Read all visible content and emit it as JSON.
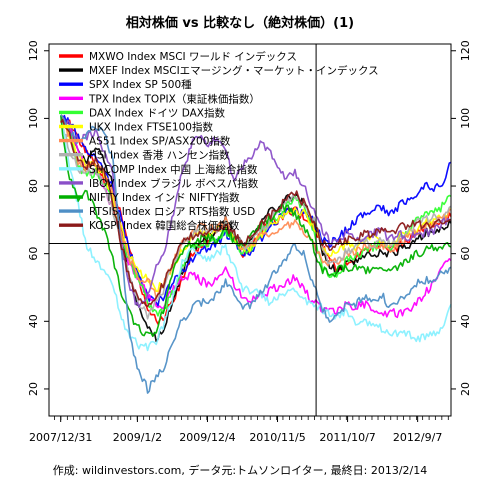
{
  "chart_data": {
    "type": "line",
    "title": "相対株価 vs 比較なし（絶対株価）(1)",
    "caption": "作成: wildinvestors.com, データ元:トムソンロイター, 最終日: 2013/2/14",
    "x_tick_labels": [
      "2007/12/31",
      "2009/1/2",
      "2009/12/4",
      "2010/11/5",
      "2011/10/7",
      "2012/9/7"
    ],
    "x_ticks": [
      "2007-12-31",
      "2009-01-02",
      "2009-12-04",
      "2010-11-05",
      "2011-10-07",
      "2012-09-07"
    ],
    "xlim": [
      "2007-11-05",
      "2013-02-14"
    ],
    "ylim": [
      12,
      122
    ],
    "y_ticks": [
      20,
      40,
      60,
      80,
      100,
      120
    ],
    "reference_lines": {
      "vertical_date": "2011-05-09",
      "horizontal_value": 63
    },
    "grid": false,
    "legend_position": "top-left",
    "series": [
      {
        "name": "MXWO Index MSCI ワールド インデックス",
        "color": "#ff0000",
        "values": [
          100,
          99,
          94,
          90,
          86,
          82,
          78,
          71,
          60,
          52,
          44,
          40,
          42,
          46,
          53,
          59,
          62,
          64,
          66,
          68,
          65,
          60,
          62,
          66,
          69,
          70,
          72,
          73,
          71,
          68,
          63,
          58,
          55,
          57,
          59,
          61,
          61,
          62,
          61,
          62,
          64,
          66,
          68,
          69,
          70,
          71
        ]
      },
      {
        "name": "MXEF Index MSCIエマージング・マーケット・インデックス",
        "color": "#000000",
        "values": [
          100,
          97,
          91,
          87,
          92,
          88,
          80,
          66,
          52,
          44,
          38,
          35,
          39,
          46,
          55,
          61,
          63,
          65,
          67,
          70,
          66,
          62,
          64,
          69,
          72,
          74,
          76,
          77,
          75,
          70,
          62,
          56,
          55,
          57,
          58,
          60,
          59,
          61,
          60,
          61,
          62,
          64,
          66,
          67,
          67,
          69
        ]
      },
      {
        "name": "SPX Index SP 500種",
        "color": "#0000ff",
        "values": [
          100,
          99,
          94,
          91,
          88,
          85,
          79,
          70,
          60,
          53,
          47,
          45,
          48,
          52,
          55,
          58,
          60,
          62,
          63,
          66,
          64,
          60,
          61,
          64,
          68,
          70,
          72,
          73,
          72,
          70,
          65,
          63,
          65,
          67,
          70,
          72,
          73,
          74,
          72,
          74,
          76,
          78,
          80,
          79,
          81,
          87
        ]
      },
      {
        "name": "TPX Index TOPIX（東証株価指数）",
        "color": "#ff00ff",
        "values": [
          100,
          97,
          90,
          85,
          84,
          80,
          73,
          65,
          56,
          52,
          48,
          45,
          45,
          50,
          53,
          54,
          52,
          51,
          52,
          55,
          51,
          47,
          46,
          48,
          49,
          50,
          51,
          53,
          50,
          46,
          44,
          43,
          43,
          45,
          44,
          45,
          44,
          42,
          43,
          42,
          43,
          45,
          48,
          52,
          56,
          58
        ]
      },
      {
        "name": "DAX Index ドイツ DAX指数",
        "color": "#33ff33",
        "values": [
          100,
          96,
          86,
          83,
          84,
          81,
          75,
          65,
          57,
          52,
          46,
          42,
          44,
          49,
          56,
          61,
          63,
          63,
          64,
          66,
          63,
          60,
          62,
          66,
          69,
          71,
          74,
          76,
          74,
          68,
          57,
          53,
          54,
          58,
          59,
          61,
          62,
          63,
          61,
          64,
          67,
          70,
          71,
          72,
          74,
          77
        ]
      },
      {
        "name": "UKX Index FTSE100指数",
        "color": "#ffff00",
        "values": [
          100,
          95,
          88,
          87,
          86,
          83,
          76,
          67,
          59,
          55,
          52,
          49,
          52,
          56,
          61,
          65,
          66,
          66,
          67,
          69,
          65,
          61,
          62,
          65,
          68,
          70,
          71,
          73,
          72,
          69,
          63,
          60,
          61,
          63,
          62,
          64,
          65,
          64,
          63,
          65,
          66,
          67,
          69,
          70,
          71,
          73
        ]
      },
      {
        "name": "AS51 Index SP/ASX200指数",
        "color": "#ff8c55",
        "values": [
          100,
          95,
          86,
          85,
          87,
          84,
          78,
          66,
          58,
          53,
          52,
          48,
          52,
          58,
          63,
          66,
          68,
          68,
          68,
          70,
          64,
          61,
          63,
          66,
          66,
          67,
          68,
          70,
          67,
          64,
          59,
          57,
          58,
          60,
          60,
          63,
          62,
          63,
          61,
          63,
          65,
          66,
          68,
          69,
          70,
          73
        ]
      },
      {
        "name": "HSI Index 香港 ハンセン指数",
        "color": "#b0b0b0",
        "values": [
          100,
          90,
          85,
          84,
          84,
          80,
          73,
          62,
          52,
          45,
          42,
          46,
          50,
          58,
          63,
          66,
          66,
          67,
          67,
          69,
          66,
          62,
          63,
          67,
          69,
          73,
          75,
          77,
          75,
          71,
          64,
          57,
          58,
          61,
          62,
          64,
          62,
          64,
          63,
          64,
          66,
          69,
          70,
          71,
          70,
          74
        ]
      },
      {
        "name": "SHCOMP Index 中国 上海総合指数",
        "color": "#88f0ff",
        "values": [
          100,
          86,
          74,
          62,
          58,
          55,
          50,
          41,
          35,
          33,
          32,
          34,
          40,
          48,
          57,
          62,
          60,
          58,
          60,
          62,
          56,
          50,
          49,
          48,
          46,
          47,
          48,
          50,
          47,
          45,
          44,
          42,
          42,
          43,
          40,
          40,
          40,
          38,
          37,
          36,
          36,
          35,
          35,
          36,
          38,
          45
        ]
      },
      {
        "name": "IBOV Index ブラジル ボベスパ指数",
        "color": "#8a4fc8",
        "values": [
          100,
          98,
          93,
          95,
          96,
          90,
          84,
          62,
          50,
          43,
          48,
          56,
          62,
          72,
          84,
          92,
          95,
          92,
          94,
          90,
          82,
          86,
          89,
          93,
          91,
          86,
          82,
          84,
          80,
          74,
          68,
          64,
          64,
          66,
          64,
          65,
          66,
          67,
          64,
          66,
          65,
          66,
          66,
          67,
          69,
          70
        ]
      },
      {
        "name": "NIFTY Index インド NIFTY指数",
        "color": "#00b000",
        "values": [
          100,
          82,
          76,
          78,
          73,
          67,
          58,
          48,
          42,
          38,
          36,
          37,
          45,
          55,
          61,
          63,
          64,
          65,
          64,
          67,
          64,
          63,
          65,
          68,
          70,
          73,
          74,
          72,
          68,
          63,
          56,
          53,
          55,
          56,
          56,
          55,
          55,
          56,
          54,
          56,
          58,
          60,
          61,
          62,
          62,
          62
        ]
      },
      {
        "name": "RTSIS Index ロシア RTS指数 USD",
        "color": "#4f8fc6",
        "values": [
          100,
          97,
          92,
          96,
          98,
          95,
          88,
          60,
          35,
          25,
          20,
          23,
          27,
          35,
          40,
          44,
          45,
          46,
          48,
          52,
          48,
          44,
          45,
          48,
          52,
          55,
          58,
          63,
          60,
          52,
          45,
          40,
          42,
          45,
          45,
          47,
          46,
          48,
          44,
          46,
          48,
          51,
          52,
          53,
          54,
          56
        ]
      },
      {
        "name": "KOSPI Index 韓国総合株価指数",
        "color": "#8b1a1a",
        "values": [
          100,
          95,
          87,
          86,
          88,
          84,
          75,
          62,
          52,
          46,
          45,
          47,
          52,
          58,
          64,
          65,
          66,
          66,
          67,
          68,
          66,
          63,
          65,
          69,
          71,
          73,
          76,
          78,
          75,
          70,
          64,
          62,
          63,
          64,
          64,
          66,
          66,
          67,
          66,
          68,
          68,
          69,
          68,
          69,
          70,
          70
        ]
      }
    ]
  }
}
